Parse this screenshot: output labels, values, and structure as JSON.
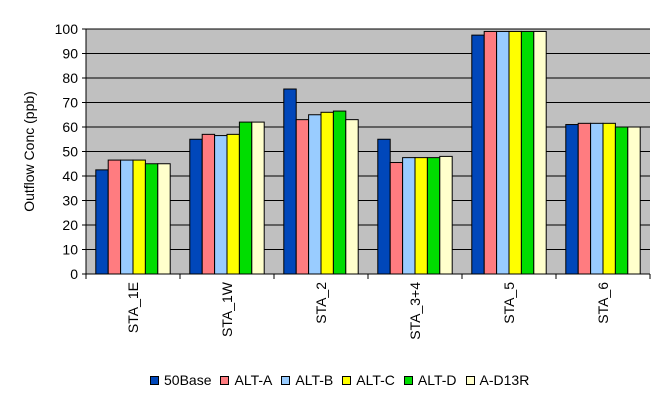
{
  "chart_data": {
    "type": "bar",
    "title": "",
    "xlabel": "",
    "ylabel": "Outflow Conc (ppb)",
    "ylim": [
      0,
      100
    ],
    "yticks": [
      0,
      10,
      20,
      30,
      40,
      50,
      60,
      70,
      80,
      90,
      100
    ],
    "grid": true,
    "legend_position": "bottom",
    "plot_background": "#c0c0c0",
    "categories": [
      "STA_1E",
      "STA_1W",
      "STA_2",
      "STA_3+4",
      "STA_5",
      "STA_6"
    ],
    "series": [
      {
        "name": "50Base",
        "color": "#0047ba",
        "values": [
          42.5,
          55,
          75.5,
          55,
          97.5,
          61
        ]
      },
      {
        "name": "ALT-A",
        "color": "#ff7c80",
        "values": [
          46.5,
          57,
          63,
          45.5,
          99,
          61.5
        ]
      },
      {
        "name": "ALT-B",
        "color": "#99ccff",
        "values": [
          46.5,
          56.5,
          65,
          47.5,
          99,
          61.5
        ]
      },
      {
        "name": "ALT-C",
        "color": "#ffff00",
        "values": [
          46.5,
          57,
          66,
          47.5,
          99,
          61.5
        ]
      },
      {
        "name": "ALT-D",
        "color": "#00dd00",
        "values": [
          45,
          62,
          66.5,
          47.5,
          99,
          60
        ]
      },
      {
        "name": "A-D13R",
        "color": "#ffffcc",
        "values": [
          45,
          62,
          63,
          48,
          99,
          60
        ]
      }
    ]
  }
}
